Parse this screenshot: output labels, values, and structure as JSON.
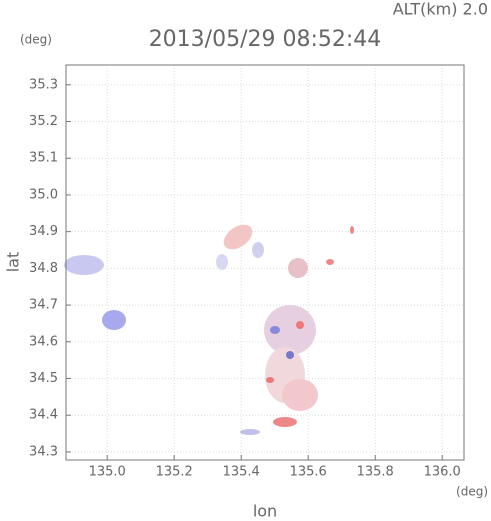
{
  "chart_data": {
    "type": "radar-map",
    "title": "2013/05/29 08:52:44",
    "altitude_label": "ALT(km) 2.0",
    "y_unit": "(deg)",
    "x_unit": "(deg)",
    "x_label": "lon",
    "y_label": "lat",
    "xlim": [
      134.877,
      136.065
    ],
    "ylim": [
      34.278,
      35.354
    ],
    "xticks": [
      {
        "value": 135.0,
        "label": "135.0"
      },
      135.2,
      135.4,
      135.6,
      135.8,
      {
        "value": 136.0,
        "label": "136.0"
      }
    ],
    "yticks": [
      34.3,
      34.4,
      34.5,
      34.6,
      34.7,
      34.8,
      34.9,
      {
        "value": 35.0,
        "label": "35.0"
      },
      35.1,
      35.2,
      35.3
    ],
    "grid": true
  }
}
